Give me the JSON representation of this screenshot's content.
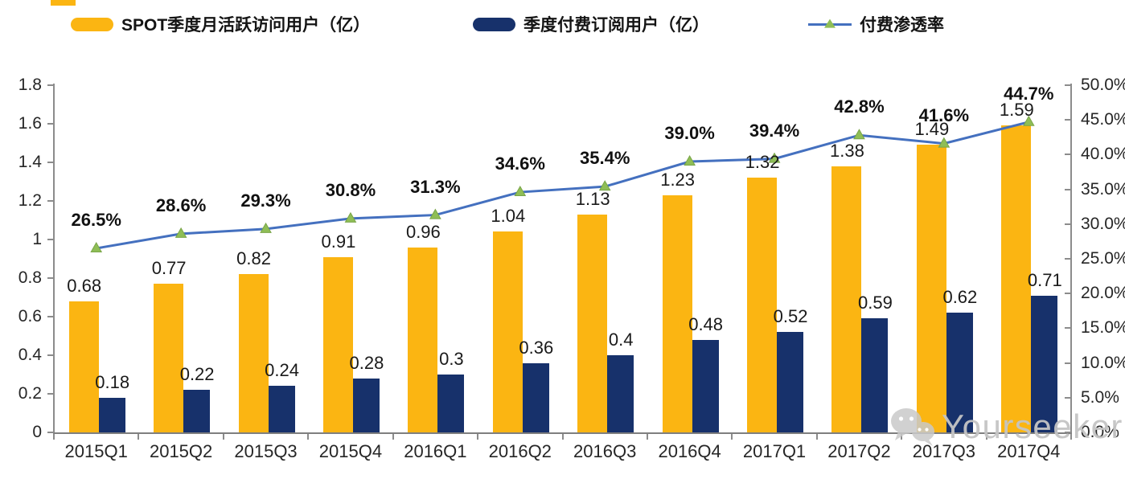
{
  "legend": [
    {
      "label": "SPOT季度月活跃访问用户（亿）",
      "swatch": "bar",
      "color": "#FBB512"
    },
    {
      "label": "季度付费订阅用户（亿）",
      "swatch": "bar",
      "color": "#17316B"
    },
    {
      "label": "付费渗透率",
      "swatch": "line-marker",
      "line_color": "#4470BF",
      "marker_color": "#8FBE56"
    }
  ],
  "watermark": {
    "text": "Yourseeker",
    "icon": "wechat-icon"
  },
  "colors": {
    "bar_mau": "#FBB512",
    "bar_subs": "#17316B",
    "line": "#4470BF",
    "marker": "#8FBE56",
    "axis": "#8c8c8c",
    "watermark": "#c5c5c5"
  },
  "chart_data": {
    "type": "bar",
    "combo": "dual-axis bar + line",
    "categories": [
      "2015Q1",
      "2015Q2",
      "2015Q3",
      "2015Q4",
      "2016Q1",
      "2016Q2",
      "2016Q3",
      "2016Q4",
      "2017Q1",
      "2017Q2",
      "2017Q3",
      "2017Q4"
    ],
    "series": [
      {
        "name": "SPOT季度月活跃访问用户（亿）",
        "type": "bar",
        "axis": "left",
        "color": "#FBB512",
        "values": [
          0.68,
          0.77,
          0.82,
          0.91,
          0.96,
          1.04,
          1.13,
          1.23,
          1.32,
          1.38,
          1.49,
          1.59
        ],
        "labels": [
          "0.68",
          "0.77",
          "0.82",
          "0.91",
          "0.96",
          "1.04",
          "1.13",
          "1.23",
          "1.32",
          "1.38",
          "1.49",
          "1.59"
        ]
      },
      {
        "name": "季度付费订阅用户（亿）",
        "type": "bar",
        "axis": "left",
        "color": "#17316B",
        "values": [
          0.18,
          0.22,
          0.24,
          0.28,
          0.3,
          0.36,
          0.4,
          0.48,
          0.52,
          0.59,
          0.62,
          0.71
        ],
        "labels": [
          "0.18",
          "0.22",
          "0.24",
          "0.28",
          "0.3",
          "0.36",
          "0.4",
          "0.48",
          "0.52",
          "0.59",
          "0.62",
          "0.71"
        ]
      },
      {
        "name": "付费渗透率",
        "type": "line",
        "axis": "right",
        "color": "#4470BF",
        "marker": "triangle-up",
        "marker_color": "#8FBE56",
        "values": [
          26.5,
          28.6,
          29.3,
          30.8,
          31.3,
          34.6,
          35.4,
          39.0,
          39.4,
          42.8,
          41.6,
          44.7
        ],
        "labels": [
          "26.5%",
          "28.6%",
          "29.3%",
          "30.8%",
          "31.3%",
          "34.6%",
          "35.4%",
          "39.0%",
          "39.4%",
          "42.8%",
          "41.6%",
          "44.7%"
        ]
      }
    ],
    "left_axis": {
      "min": 0,
      "max": 1.8,
      "step": 0.2,
      "tick_labels": [
        "0",
        "0.2",
        "0.4",
        "0.6",
        "0.8",
        "1",
        "1.2",
        "1.4",
        "1.6",
        "1.8"
      ]
    },
    "right_axis": {
      "min": 0,
      "max": 50,
      "step": 5,
      "tick_labels": [
        "0.0%",
        "5.0%",
        "10.0%",
        "15.0%",
        "20.0%",
        "25.0%",
        "30.0%",
        "35.0%",
        "40.0%",
        "45.0%",
        "50.0%"
      ]
    },
    "grid": false,
    "legend_position": "top"
  }
}
